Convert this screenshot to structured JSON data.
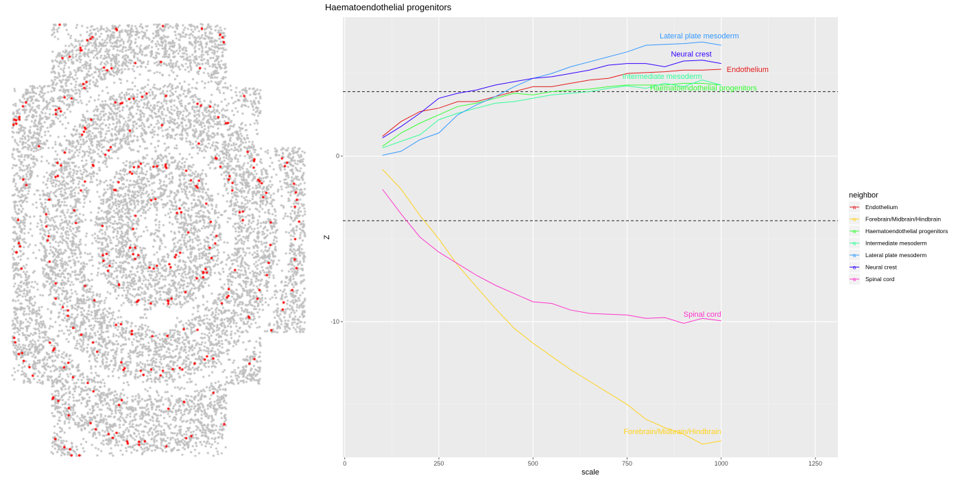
{
  "spatial_plot": {
    "background_point_color": "#bdbdbd",
    "highlight_point_color": "#ff0000"
  },
  "chart_data": {
    "type": "line",
    "title": "Haematoendothelial progenitors",
    "xlabel": "scale",
    "ylabel": "Z",
    "xlim": [
      -5,
      1310
    ],
    "ylim": [
      -18.2,
      8.4
    ],
    "x_ticks": [
      0,
      250,
      500,
      750,
      1000,
      1250
    ],
    "y_ticks": [
      0,
      -10
    ],
    "reference_lines": [
      3.9,
      -3.9
    ],
    "grid": true,
    "legend_title": "neighbor",
    "legend_position": "right",
    "x": [
      100,
      150,
      200,
      250,
      300,
      350,
      400,
      450,
      500,
      550,
      600,
      650,
      700,
      750,
      800,
      850,
      900,
      950,
      1000
    ],
    "series": [
      {
        "name": "Endothelium",
        "color": "#e41a1c",
        "values": [
          1.2,
          2.1,
          2.7,
          2.9,
          3.3,
          3.3,
          3.6,
          3.9,
          4.2,
          4.2,
          4.4,
          4.6,
          4.7,
          5.0,
          5.05,
          5.1,
          5.2,
          5.2,
          5.25
        ]
      },
      {
        "name": "Forebrain/Midbrain/Hindbrain",
        "color": "#ffd21a",
        "values": [
          -0.8,
          -2.0,
          -3.6,
          -5.0,
          -6.6,
          -7.9,
          -9.2,
          -10.4,
          -11.3,
          -12.1,
          -12.9,
          -13.6,
          -14.3,
          -15.0,
          -15.9,
          -16.4,
          -16.8,
          -17.4,
          -17.2
        ]
      },
      {
        "name": "Haematoendothelial progenitors",
        "color": "#33ff33",
        "values": [
          0.6,
          1.4,
          2.0,
          2.5,
          3.0,
          3.2,
          3.5,
          3.8,
          3.7,
          3.9,
          4.0,
          4.05,
          4.2,
          4.3,
          4.3,
          4.3,
          4.4,
          4.4,
          4.3
        ]
      },
      {
        "name": "Intermediate mesoderm",
        "color": "#33ff99",
        "values": [
          0.5,
          0.9,
          1.3,
          2.2,
          2.6,
          2.9,
          3.2,
          3.3,
          3.5,
          3.7,
          3.8,
          3.9,
          4.1,
          4.25,
          4.1,
          4.4,
          4.2,
          4.6,
          4.3
        ]
      },
      {
        "name": "Lateral plate mesoderm",
        "color": "#3399ff",
        "values": [
          0.05,
          0.3,
          1.0,
          1.4,
          2.5,
          3.1,
          3.6,
          4.2,
          4.7,
          5.0,
          5.4,
          5.7,
          6.0,
          6.3,
          6.7,
          6.75,
          6.8,
          6.9,
          6.7
        ]
      },
      {
        "name": "Neural crest",
        "color": "#3300ff",
        "values": [
          1.1,
          1.8,
          2.6,
          3.5,
          3.8,
          4.0,
          4.3,
          4.5,
          4.7,
          4.8,
          5.0,
          5.2,
          5.5,
          5.6,
          5.6,
          5.4,
          5.75,
          5.8,
          5.6
        ]
      },
      {
        "name": "Spinal cord",
        "color": "#ff33cc",
        "values": [
          -2.0,
          -3.5,
          -4.9,
          -5.8,
          -6.5,
          -7.2,
          -7.8,
          -8.3,
          -8.8,
          -8.9,
          -9.3,
          -9.5,
          -9.55,
          -9.6,
          -9.8,
          -9.75,
          -10.1,
          -9.8,
          -9.95
        ]
      }
    ],
    "direct_labels": [
      {
        "text": "Lateral plate mesoderm",
        "series": 4
      },
      {
        "text": "Neural crest",
        "series": 5
      },
      {
        "text": "Endothelium",
        "series": 0
      },
      {
        "text": "Intermediate mesoderm",
        "series": 3
      },
      {
        "text": "Haematoendothelial progenitors",
        "series": 2
      },
      {
        "text": "Spinal cord",
        "series": 6
      },
      {
        "text": "Forebrain/Midbrain/Hindbrain",
        "series": 1
      }
    ]
  }
}
